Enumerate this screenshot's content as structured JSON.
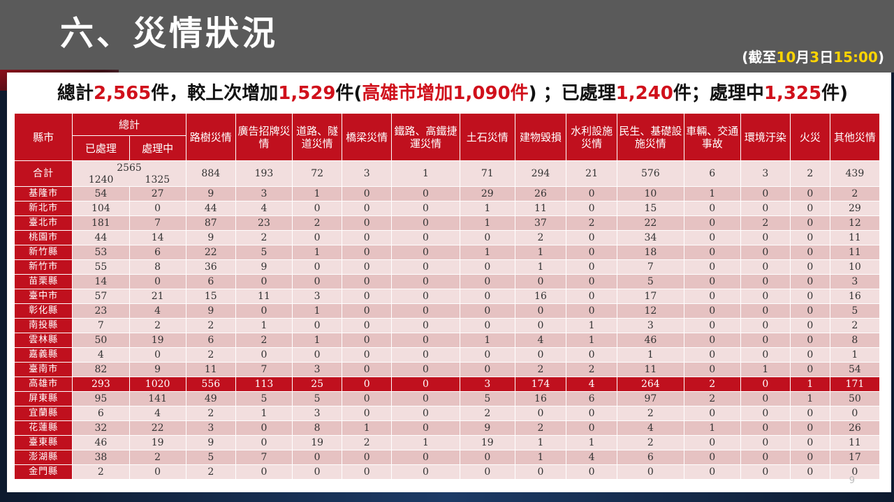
{
  "page_title": "六、災情狀況",
  "as_of": {
    "prefix": "(截至",
    "month": "10",
    "month_unit": "月",
    "day": "3",
    "day_unit": "日",
    "time": "15:00",
    "suffix": ")"
  },
  "summary": {
    "t1": "總計",
    "total": "2,565",
    "t2": "件，較上次增加",
    "increase": "1,529",
    "t3": "件(",
    "city_increase": "高雄市增加1,090件",
    "t4": ") ；已處理",
    "processed": "1,240",
    "t5": "件；處理中",
    "processing": "1,325",
    "t6": "件)"
  },
  "table": {
    "headers": {
      "county": "縣市",
      "total": "總計",
      "processed": "已處理",
      "processing": "處理中",
      "categories": [
        "路樹災情",
        "廣告招牌災情",
        "道路、隧道災情",
        "橋梁災情",
        "鐵路、高鐵捷運災情",
        "土石災情",
        "建物毀損",
        "水利設施災情",
        "民生、基礎設施災情",
        "車輛、交通事故",
        "環境汙染",
        "火災",
        "其他災情"
      ]
    },
    "total_row": {
      "label": "合計",
      "total": "2565",
      "processed": "1240",
      "processing": "1325",
      "values": [
        "884",
        "193",
        "72",
        "3",
        "1",
        "71",
        "294",
        "21",
        "576",
        "6",
        "3",
        "2",
        "439"
      ]
    },
    "rows": [
      {
        "city": "基隆市",
        "v": [
          "54",
          "27",
          "9",
          "3",
          "1",
          "0",
          "0",
          "29",
          "26",
          "0",
          "10",
          "1",
          "0",
          "0",
          "2"
        ]
      },
      {
        "city": "新北市",
        "v": [
          "104",
          "0",
          "44",
          "4",
          "0",
          "0",
          "0",
          "1",
          "11",
          "0",
          "15",
          "0",
          "0",
          "0",
          "29"
        ]
      },
      {
        "city": "臺北市",
        "v": [
          "181",
          "7",
          "87",
          "23",
          "2",
          "0",
          "0",
          "1",
          "37",
          "2",
          "22",
          "0",
          "2",
          "0",
          "12"
        ]
      },
      {
        "city": "桃園市",
        "v": [
          "44",
          "14",
          "9",
          "2",
          "0",
          "0",
          "0",
          "0",
          "2",
          "0",
          "34",
          "0",
          "0",
          "0",
          "11"
        ]
      },
      {
        "city": "新竹縣",
        "v": [
          "53",
          "6",
          "22",
          "5",
          "1",
          "0",
          "0",
          "1",
          "1",
          "0",
          "18",
          "0",
          "0",
          "0",
          "11"
        ]
      },
      {
        "city": "新竹市",
        "v": [
          "55",
          "8",
          "36",
          "9",
          "0",
          "0",
          "0",
          "0",
          "1",
          "0",
          "7",
          "0",
          "0",
          "0",
          "10"
        ]
      },
      {
        "city": "苗栗縣",
        "v": [
          "14",
          "0",
          "6",
          "0",
          "0",
          "0",
          "0",
          "0",
          "0",
          "0",
          "5",
          "0",
          "0",
          "0",
          "3"
        ]
      },
      {
        "city": "臺中市",
        "v": [
          "57",
          "21",
          "15",
          "11",
          "3",
          "0",
          "0",
          "0",
          "16",
          "0",
          "17",
          "0",
          "0",
          "0",
          "16"
        ]
      },
      {
        "city": "彰化縣",
        "v": [
          "23",
          "4",
          "9",
          "0",
          "1",
          "0",
          "0",
          "0",
          "0",
          "0",
          "12",
          "0",
          "0",
          "0",
          "5"
        ]
      },
      {
        "city": "南投縣",
        "v": [
          "7",
          "2",
          "2",
          "1",
          "0",
          "0",
          "0",
          "0",
          "0",
          "1",
          "3",
          "0",
          "0",
          "0",
          "2"
        ]
      },
      {
        "city": "雲林縣",
        "v": [
          "50",
          "19",
          "6",
          "2",
          "1",
          "0",
          "0",
          "1",
          "4",
          "1",
          "46",
          "0",
          "0",
          "0",
          "8"
        ]
      },
      {
        "city": "嘉義縣",
        "v": [
          "4",
          "0",
          "2",
          "0",
          "0",
          "0",
          "0",
          "0",
          "0",
          "0",
          "1",
          "0",
          "0",
          "0",
          "1"
        ]
      },
      {
        "city": "臺南市",
        "v": [
          "82",
          "9",
          "11",
          "7",
          "3",
          "0",
          "0",
          "0",
          "2",
          "2",
          "11",
          "0",
          "1",
          "0",
          "54"
        ]
      },
      {
        "city": "高雄市",
        "v": [
          "293",
          "1020",
          "556",
          "113",
          "25",
          "0",
          "0",
          "3",
          "174",
          "4",
          "264",
          "2",
          "0",
          "1",
          "171"
        ],
        "highlight": true
      },
      {
        "city": "屏東縣",
        "v": [
          "95",
          "141",
          "49",
          "5",
          "5",
          "0",
          "0",
          "5",
          "16",
          "6",
          "97",
          "2",
          "0",
          "1",
          "50"
        ]
      },
      {
        "city": "宜蘭縣",
        "v": [
          "6",
          "4",
          "2",
          "1",
          "3",
          "0",
          "0",
          "2",
          "0",
          "0",
          "2",
          "0",
          "0",
          "0",
          "0"
        ]
      },
      {
        "city": "花蓮縣",
        "v": [
          "32",
          "22",
          "3",
          "0",
          "8",
          "1",
          "0",
          "9",
          "2",
          "0",
          "4",
          "1",
          "0",
          "0",
          "26"
        ]
      },
      {
        "city": "臺東縣",
        "v": [
          "46",
          "19",
          "9",
          "0",
          "19",
          "2",
          "1",
          "19",
          "1",
          "1",
          "2",
          "0",
          "0",
          "0",
          "11"
        ]
      },
      {
        "city": "澎湖縣",
        "v": [
          "38",
          "2",
          "5",
          "7",
          "0",
          "0",
          "0",
          "0",
          "1",
          "4",
          "6",
          "0",
          "0",
          "0",
          "17"
        ]
      },
      {
        "city": "金門縣",
        "v": [
          "2",
          "0",
          "2",
          "0",
          "0",
          "0",
          "0",
          "0",
          "0",
          "0",
          "0",
          "0",
          "0",
          "0",
          "0"
        ]
      }
    ]
  },
  "page_number": "9"
}
